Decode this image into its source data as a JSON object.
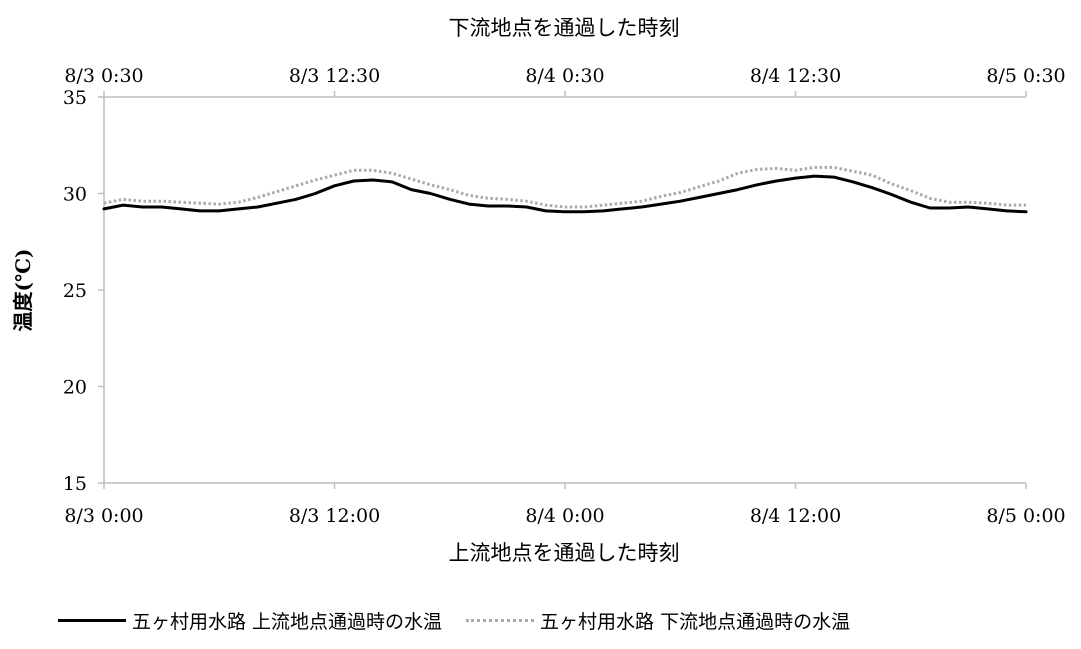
{
  "chart_data": {
    "type": "line",
    "xlabel_bottom": "上流地点を通過した時刻",
    "xlabel_top": "下流地点を通過した時刻",
    "ylabel": "温度(℃)",
    "ylim": [
      15,
      35
    ],
    "yticks": [
      "15",
      "20",
      "25",
      "30",
      "35"
    ],
    "xlim_hours": [
      0,
      48
    ],
    "x_bottom_ticks": [
      "8/3 0:00",
      "8/3 12:00",
      "8/4 0:00",
      "8/4 12:00",
      "8/5 0:00"
    ],
    "x_top_ticks": [
      "8/3 0:30",
      "8/3 12:30",
      "8/4 0:30",
      "8/4 12:30",
      "8/5 0:30"
    ],
    "grid": false,
    "legend_position": "bottom",
    "x": [
      0,
      1,
      2,
      3,
      4,
      5,
      6,
      7,
      8,
      9,
      10,
      11,
      12,
      13,
      14,
      15,
      16,
      17,
      18,
      19,
      20,
      21,
      22,
      23,
      24,
      25,
      26,
      27,
      28,
      29,
      30,
      31,
      32,
      33,
      34,
      35,
      36,
      37,
      38,
      39,
      40,
      41,
      42,
      43,
      44,
      45,
      46,
      47,
      48
    ],
    "series": [
      {
        "name": "五ヶ村用水路 上流地点通過時の水温",
        "color": "#000000",
        "style": "solid",
        "values": [
          29.2,
          29.4,
          29.3,
          29.3,
          29.2,
          29.1,
          29.1,
          29.2,
          29.3,
          29.5,
          29.7,
          30.0,
          30.4,
          30.65,
          30.7,
          30.6,
          30.2,
          30.0,
          29.7,
          29.45,
          29.35,
          29.35,
          29.3,
          29.1,
          29.05,
          29.05,
          29.1,
          29.2,
          29.3,
          29.45,
          29.6,
          29.8,
          30.0,
          30.2,
          30.45,
          30.65,
          30.8,
          30.9,
          30.85,
          30.6,
          30.3,
          29.95,
          29.55,
          29.25,
          29.25,
          29.3,
          29.2,
          29.1,
          29.05
        ]
      },
      {
        "name": "五ヶ村用水路 下流地点通過時の水温",
        "color": "#aaaaaa",
        "style": "dotted",
        "values": [
          29.5,
          29.7,
          29.6,
          29.6,
          29.55,
          29.5,
          29.45,
          29.55,
          29.8,
          30.1,
          30.4,
          30.7,
          30.95,
          31.2,
          31.2,
          31.05,
          30.75,
          30.45,
          30.2,
          29.9,
          29.75,
          29.7,
          29.6,
          29.4,
          29.3,
          29.3,
          29.4,
          29.5,
          29.6,
          29.85,
          30.05,
          30.35,
          30.65,
          31.05,
          31.25,
          31.3,
          31.2,
          31.35,
          31.35,
          31.15,
          30.95,
          30.5,
          30.15,
          29.75,
          29.55,
          29.55,
          29.5,
          29.4,
          29.4
        ]
      }
    ]
  }
}
